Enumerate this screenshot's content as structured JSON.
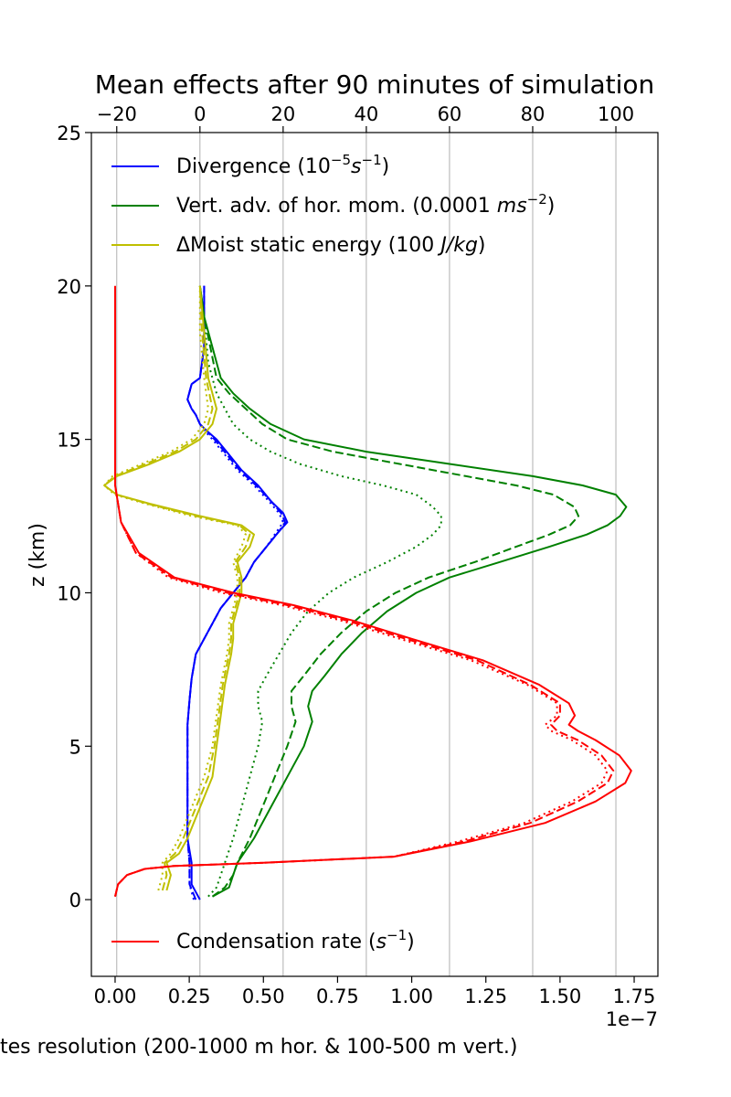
{
  "chart_data": {
    "type": "line",
    "title": "Mean effects after 90 minutes of simulation",
    "ylabel": "z (km)",
    "xlabel": "tes resolution (200-1000 m hor. & 100-500 m vert.)",
    "bottom_axis": {
      "range": [
        -0.08,
        1.83
      ],
      "ticks": [
        0.0,
        0.25,
        0.5,
        0.75,
        1.0,
        1.25,
        1.5,
        1.75
      ],
      "tick_labels": [
        "0.00",
        "0.25",
        "0.50",
        "0.75",
        "1.00",
        "1.25",
        "1.50",
        "1.75"
      ],
      "offset_text": "1e−7"
    },
    "top_axis": {
      "range": [
        -26.1,
        110.1
      ],
      "ticks": [
        -20,
        0,
        20,
        40,
        60,
        80,
        100
      ],
      "tick_labels": [
        "−20",
        "0",
        "20",
        "40",
        "60",
        "80",
        "100"
      ]
    },
    "y_axis": {
      "range": [
        -2.5,
        25
      ],
      "ticks": [
        0,
        5,
        10,
        15,
        20,
        25
      ],
      "tick_labels": [
        "0",
        "5",
        "10",
        "15",
        "20",
        "25"
      ]
    },
    "grid": "vertical lines at top-axis ticks",
    "legend_top": {
      "placement": "upper-left",
      "entries": [
        {
          "label_main": "Divergence (10",
          "sup": "−5",
          "ital": "s",
          "sup2": "−1",
          "label_end": ")",
          "color": "#0000ff"
        },
        {
          "label_main": "Vert. adv. of hor. mom. (0.0001 ",
          "ital": "ms",
          "sup": "−2",
          "label_end": ")",
          "color": "#008000"
        },
        {
          "label_main": "ΔMoist static energy (100 ",
          "ital": "J/kg",
          "label_end": ")",
          "color": "#bfbf00"
        }
      ]
    },
    "legend_bottom": {
      "placement": "lower-left",
      "entries": [
        {
          "label_main": "Condensation rate (",
          "ital": "s",
          "sup": "−1",
          "label_end": ")",
          "color": "#ff0000"
        }
      ]
    },
    "series": [
      {
        "key": "divergence_solid",
        "axis": "top",
        "color": "#0000ff",
        "style": "solid",
        "x": [
          0,
          -2,
          -2,
          -3,
          -3,
          -3,
          -3,
          -3,
          -2.5,
          -2,
          -1,
          1,
          3,
          5,
          8,
          11,
          13,
          16,
          19,
          21,
          20,
          17,
          14,
          10,
          7,
          4,
          1.5,
          0,
          -1,
          -2,
          -3,
          -2,
          0,
          1,
          1,
          1
        ],
        "y": [
          0,
          0.5,
          1.2,
          2,
          3,
          4,
          5,
          5.7,
          6.5,
          7.2,
          8,
          8.5,
          9,
          9.5,
          10,
          10.5,
          11,
          11.5,
          12,
          12.3,
          12.6,
          13,
          13.5,
          14,
          14.5,
          15,
          15.3,
          15.5,
          15.8,
          16,
          16.3,
          16.8,
          17,
          18,
          19,
          20
        ]
      },
      {
        "key": "divergence_dashed",
        "axis": "top",
        "color": "#0000ff",
        "style": "dashed",
        "x": [
          -1,
          -2.5,
          -2.5,
          -3,
          -3,
          -3,
          -3,
          -3,
          -2.5,
          -2,
          -1,
          1,
          3,
          5,
          8,
          11,
          13,
          16,
          19,
          20.5,
          19.5,
          17,
          13.5,
          9.5,
          6.5,
          3.5,
          1.5,
          0,
          -1,
          -2,
          -3,
          -2,
          0,
          1,
          1,
          1
        ],
        "y": [
          0,
          0.5,
          1.2,
          2,
          3,
          4,
          5,
          5.7,
          6.5,
          7.2,
          8,
          8.5,
          9,
          9.5,
          10,
          10.5,
          11,
          11.5,
          12,
          12.3,
          12.6,
          13,
          13.5,
          14,
          14.5,
          15,
          15.3,
          15.5,
          15.8,
          16,
          16.3,
          16.8,
          17,
          18,
          19,
          20
        ]
      },
      {
        "key": "divergence_dotted",
        "axis": "top",
        "color": "#0000ff",
        "style": "dotted",
        "x": [
          -1.5,
          -2.5,
          -2.5,
          -3,
          -3,
          -3,
          -3,
          -3,
          -2.5,
          -2,
          -1,
          1,
          3,
          5,
          8,
          11,
          13,
          16,
          18.5,
          20,
          19,
          16.5,
          13,
          9,
          6,
          3,
          1,
          0,
          -1,
          -2,
          -3,
          -2,
          0,
          1,
          1,
          1
        ],
        "y": [
          0,
          0.5,
          1.2,
          2,
          3,
          4,
          5,
          5.7,
          6.5,
          7.2,
          8,
          8.5,
          9,
          9.5,
          10,
          10.5,
          11,
          11.5,
          12,
          12.3,
          12.6,
          13,
          13.5,
          14,
          14.5,
          15,
          15.3,
          15.5,
          15.8,
          16,
          16.3,
          16.8,
          17,
          18,
          19,
          20
        ]
      },
      {
        "key": "vertadv_solid",
        "axis": "top",
        "color": "#008000",
        "style": "solid",
        "x": [
          3,
          7,
          8,
          9,
          13,
          17,
          21,
          25,
          27,
          26,
          27,
          30,
          34,
          39,
          45,
          52,
          60,
          72,
          84,
          93,
          98,
          101,
          102.5,
          100,
          92,
          80,
          60,
          40,
          25,
          17,
          12,
          8,
          5,
          3,
          1,
          0
        ],
        "y": [
          0.1,
          0.4,
          0.8,
          1.2,
          2,
          3,
          4,
          5,
          5.8,
          6.3,
          6.8,
          7.3,
          8,
          8.7,
          9.4,
          10,
          10.5,
          11,
          11.5,
          11.9,
          12.2,
          12.5,
          12.8,
          13.2,
          13.5,
          13.8,
          14.2,
          14.6,
          15,
          15.5,
          16,
          16.5,
          17,
          18,
          19,
          20
        ]
      },
      {
        "key": "vertadv_dashed",
        "axis": "top",
        "color": "#008000",
        "style": "dashed",
        "x": [
          3,
          6,
          8,
          9,
          12,
          15,
          18,
          21,
          23,
          22,
          22,
          25,
          29,
          34,
          40,
          47,
          55,
          66,
          76,
          84,
          89,
          91,
          90,
          85,
          76,
          64,
          48,
          32,
          21,
          15,
          11,
          7,
          4,
          2.5,
          1,
          0
        ],
        "y": [
          0.1,
          0.4,
          0.8,
          1.2,
          2,
          3,
          4,
          5,
          5.8,
          6.3,
          6.8,
          7.3,
          8,
          8.7,
          9.4,
          10,
          10.5,
          11,
          11.5,
          11.9,
          12.2,
          12.5,
          12.8,
          13.2,
          13.5,
          13.8,
          14.2,
          14.6,
          15,
          15.5,
          16,
          16.5,
          17,
          18,
          19,
          20
        ]
      },
      {
        "key": "vertadv_dotted",
        "axis": "top",
        "color": "#008000",
        "style": "dotted",
        "x": [
          2,
          4,
          5,
          6,
          8,
          10,
          12,
          14,
          15,
          14,
          14,
          16,
          19,
          22,
          26,
          31,
          37,
          45,
          52,
          56,
          58,
          58,
          56,
          52,
          44,
          34,
          24,
          17,
          12,
          8,
          4,
          2,
          1,
          0
        ],
        "y": [
          0.1,
          0.4,
          0.8,
          1.2,
          2,
          3,
          4,
          5,
          5.8,
          6.3,
          6.8,
          7.3,
          8,
          8.7,
          9.4,
          10,
          10.5,
          11,
          11.5,
          11.9,
          12.2,
          12.5,
          12.8,
          13.2,
          13.5,
          13.8,
          14.2,
          14.6,
          15,
          15.5,
          16.5,
          17.5,
          19,
          20
        ]
      },
      {
        "key": "mse_solid",
        "axis": "top",
        "color": "#bfbf00",
        "style": "solid",
        "x": [
          -8,
          -7,
          -8,
          -5,
          -3,
          0,
          3,
          4,
          5,
          6,
          7.5,
          8,
          8,
          9,
          10,
          10,
          9,
          12,
          13,
          10,
          0,
          -12,
          -20,
          -23,
          -20,
          -12,
          -5,
          0,
          3,
          4,
          2,
          1,
          0
        ],
        "y": [
          0.3,
          0.8,
          1.2,
          1.5,
          2,
          3,
          4,
          5,
          6,
          7,
          8,
          8.5,
          9,
          9.5,
          10,
          10.5,
          11,
          11.5,
          11.9,
          12.2,
          12.5,
          12.9,
          13.2,
          13.5,
          13.8,
          14.2,
          14.6,
          15,
          15.5,
          16,
          17,
          18.5,
          20
        ]
      },
      {
        "key": "mse_dashed",
        "axis": "top",
        "color": "#bfbf00",
        "style": "dashed",
        "x": [
          -9,
          -8,
          -8.5,
          -6,
          -4,
          -1,
          2,
          3.5,
          4.5,
          5.5,
          7,
          7.5,
          7.5,
          8.5,
          9.5,
          9.5,
          8.5,
          11,
          12,
          9.5,
          -1,
          -12.5,
          -20,
          -23,
          -20.5,
          -13,
          -6,
          -1,
          2,
          3,
          1.5,
          0.5,
          0
        ],
        "y": [
          0.3,
          0.8,
          1.2,
          1.5,
          2,
          3,
          4,
          5,
          6,
          7,
          8,
          8.5,
          9,
          9.5,
          10,
          10.5,
          11,
          11.5,
          11.9,
          12.2,
          12.5,
          12.9,
          13.2,
          13.5,
          13.8,
          14.2,
          14.6,
          15,
          15.5,
          16,
          17,
          18.5,
          20
        ]
      },
      {
        "key": "mse_dotted",
        "axis": "top",
        "color": "#bfbf00",
        "style": "dotted",
        "x": [
          -10,
          -9,
          -9,
          -7,
          -5,
          -2,
          1,
          3,
          4,
          5,
          6.5,
          7,
          7,
          8,
          9,
          9,
          8,
          10,
          11,
          9,
          -2,
          -13,
          -20.5,
          -23,
          -21,
          -14,
          -7,
          -2,
          1,
          2,
          1,
          0,
          0
        ],
        "y": [
          0.3,
          0.8,
          1.2,
          1.5,
          2,
          3,
          4,
          5,
          6,
          7,
          8,
          8.5,
          9,
          9.5,
          10,
          10.5,
          11,
          11.5,
          11.9,
          12.2,
          12.5,
          12.9,
          13.2,
          13.5,
          13.8,
          14.2,
          14.6,
          15,
          15.5,
          16,
          17,
          18.5,
          20
        ]
      },
      {
        "key": "condensation_solid",
        "axis": "bottom",
        "color": "#ff0000",
        "style": "solid",
        "x": [
          0,
          0.01,
          0.04,
          0.1,
          0.2,
          0.5,
          0.94,
          1.2,
          1.45,
          1.62,
          1.72,
          1.74,
          1.7,
          1.62,
          1.56,
          1.53,
          1.55,
          1.53,
          1.43,
          1.24,
          1.0,
          0.8,
          0.6,
          0.4,
          0.2,
          0.08,
          0.02,
          0,
          0,
          0,
          0
        ],
        "y": [
          0.1,
          0.5,
          0.8,
          1.0,
          1.1,
          1.2,
          1.4,
          1.9,
          2.5,
          3.2,
          3.8,
          4.2,
          4.7,
          5.2,
          5.5,
          5.7,
          6.0,
          6.4,
          7.0,
          7.8,
          8.5,
          9.1,
          9.6,
          10.0,
          10.5,
          11.3,
          12.3,
          13.5,
          15,
          17.5,
          20
        ]
      },
      {
        "key": "condensation_dashed",
        "axis": "bottom",
        "color": "#ff0000",
        "style": "dashed",
        "x": [
          0,
          0.01,
          0.04,
          0.1,
          0.2,
          0.5,
          0.94,
          1.18,
          1.4,
          1.56,
          1.66,
          1.68,
          1.64,
          1.56,
          1.49,
          1.47,
          1.5,
          1.5,
          1.4,
          1.22,
          0.98,
          0.78,
          0.58,
          0.38,
          0.19,
          0.07,
          0.02,
          0,
          0,
          0,
          0
        ],
        "y": [
          0.1,
          0.5,
          0.8,
          1.0,
          1.1,
          1.2,
          1.4,
          1.9,
          2.5,
          3.2,
          3.8,
          4.2,
          4.7,
          5.2,
          5.5,
          5.7,
          6.0,
          6.4,
          7.0,
          7.8,
          8.5,
          9.1,
          9.6,
          10.0,
          10.5,
          11.3,
          12.3,
          13.5,
          15,
          17.5,
          20
        ]
      },
      {
        "key": "condensation_dotted",
        "axis": "bottom",
        "color": "#ff0000",
        "style": "dotted",
        "x": [
          0,
          0.01,
          0.04,
          0.1,
          0.2,
          0.5,
          0.94,
          1.16,
          1.38,
          1.54,
          1.64,
          1.66,
          1.62,
          1.54,
          1.47,
          1.45,
          1.49,
          1.49,
          1.39,
          1.2,
          0.96,
          0.76,
          0.56,
          0.36,
          0.18,
          0.07,
          0.02,
          0,
          0,
          0,
          0
        ],
        "y": [
          0.1,
          0.5,
          0.8,
          1.0,
          1.1,
          1.2,
          1.4,
          1.9,
          2.5,
          3.2,
          3.8,
          4.2,
          4.7,
          5.2,
          5.5,
          5.7,
          6.0,
          6.4,
          7.0,
          7.8,
          8.5,
          9.1,
          9.6,
          10.0,
          10.5,
          11.3,
          12.3,
          13.5,
          15,
          17.5,
          20
        ]
      }
    ]
  }
}
